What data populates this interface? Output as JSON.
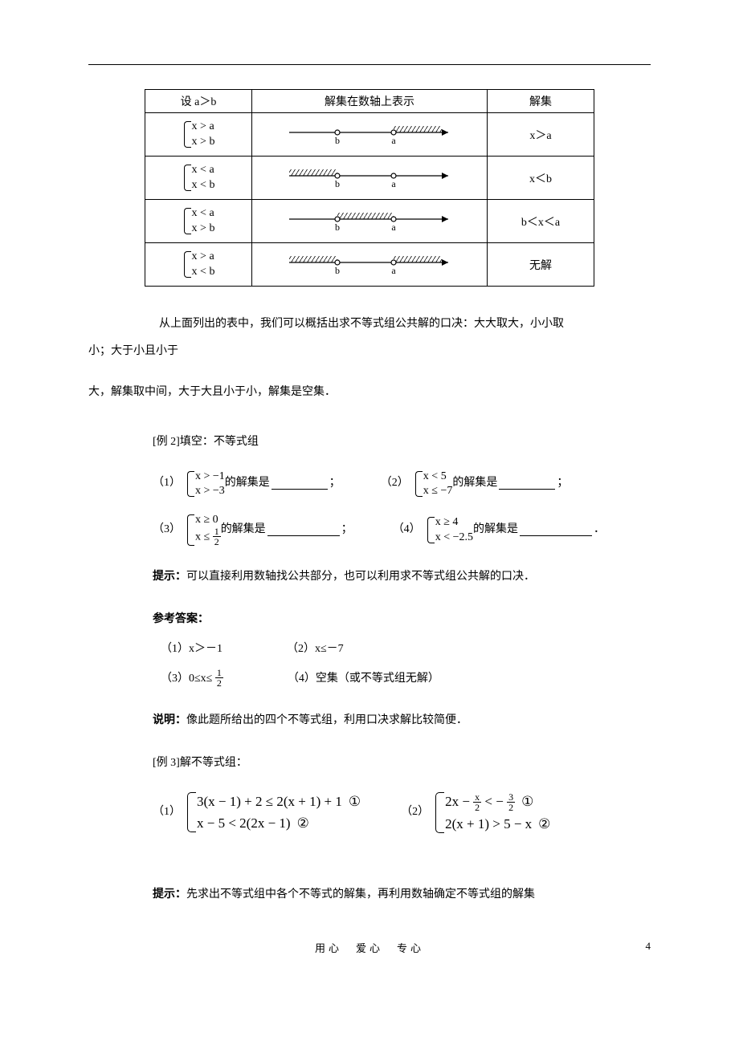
{
  "table": {
    "headers": [
      "设 a＞b",
      "解集在数轴上表示",
      "解集"
    ],
    "rows": [
      {
        "sys": [
          "x > a",
          "x > b"
        ],
        "axis": {
          "b_open": true,
          "a_open": true,
          "shade": "right"
        },
        "sol": "x＞a"
      },
      {
        "sys": [
          "x < a",
          "x < b"
        ],
        "axis": {
          "b_open": true,
          "a_open": true,
          "shade": "left"
        },
        "sol": "x＜b"
      },
      {
        "sys": [
          "x < a",
          "x > b"
        ],
        "axis": {
          "b_open": true,
          "a_open": true,
          "shade": "mid"
        },
        "sol": "b＜x＜a"
      },
      {
        "sys": [
          "x > a",
          "x < b"
        ],
        "axis": {
          "b_open": true,
          "a_open": true,
          "shade": "none"
        },
        "sol": "无解"
      }
    ],
    "labels": {
      "b": "b",
      "a": "a"
    }
  },
  "para1_a": "从上面列出的表中，我们可以概括出求不等式组公共解的口决：大大取大，小小取",
  "para1_b": "小；大于小且小于",
  "para1_c": "大，解集取中间，大于大且小于小，解集是空集．",
  "ex2": {
    "title": "[例 2]填空：不等式组",
    "items": [
      {
        "num": "（1）",
        "sys": [
          "x > −1",
          "x > −3"
        ],
        "tail": "的解集是",
        "semi": "；"
      },
      {
        "num": "（2）",
        "sys": [
          "x < 5",
          "x ≤ −7"
        ],
        "tail": "的解集是",
        "semi": "；"
      },
      {
        "num": "（3）",
        "sys_raw": [
          {
            "t": "x ≥ 0"
          },
          {
            "t": "x ≤ ",
            "frac": {
              "t": "1",
              "b": "2"
            }
          }
        ],
        "tail": "的解集是",
        "semi": "；"
      },
      {
        "num": "（4）",
        "sys": [
          "x ≥ 4",
          "x < −2.5"
        ],
        "tail": "的解集是",
        "semi": "．"
      }
    ],
    "hint_label": "提示：",
    "hint_text": "可以直接利用数轴找公共部分，也可以利用求不等式组公共解的口决．",
    "ans_label": "参考答案：",
    "answers": [
      {
        "n": "（1）",
        "t": "x＞－1"
      },
      {
        "n": "（2）",
        "t": "x≤－7"
      },
      {
        "n": "（3）",
        "prefix": "0≤x≤ ",
        "frac": {
          "t": "1",
          "b": "2"
        }
      },
      {
        "n": "（4）",
        "t": "空集（或不等式组无解）"
      }
    ],
    "note_label": "说明：",
    "note_text": "像此题所给出的四个不等式组，利用口决求解比较简便．"
  },
  "ex3": {
    "title": "[例 3]解不等式组：",
    "items": [
      {
        "num": "（1）",
        "rows": [
          {
            "t": "3(x − 1) + 2 ≤ 2(x + 1) + 1",
            "c": "①"
          },
          {
            "t": "x − 5 < 2(2x − 1)",
            "c": "②"
          }
        ]
      },
      {
        "num": "（2）",
        "rows": [
          {
            "pre": "2x − ",
            "frac1": {
              "t": "x",
              "b": "2"
            },
            "mid": " < − ",
            "frac2": {
              "t": "3",
              "b": "2"
            },
            "c": "①"
          },
          {
            "t": "2(x + 1) > 5 − x",
            "c": "②"
          }
        ]
      }
    ],
    "hint_label": "提示：",
    "hint_text": "先求出不等式组中各个不等式的解集，再利用数轴确定不等式组的解集"
  },
  "footer": {
    "text": "用心　爱心　专心",
    "page": "4"
  }
}
